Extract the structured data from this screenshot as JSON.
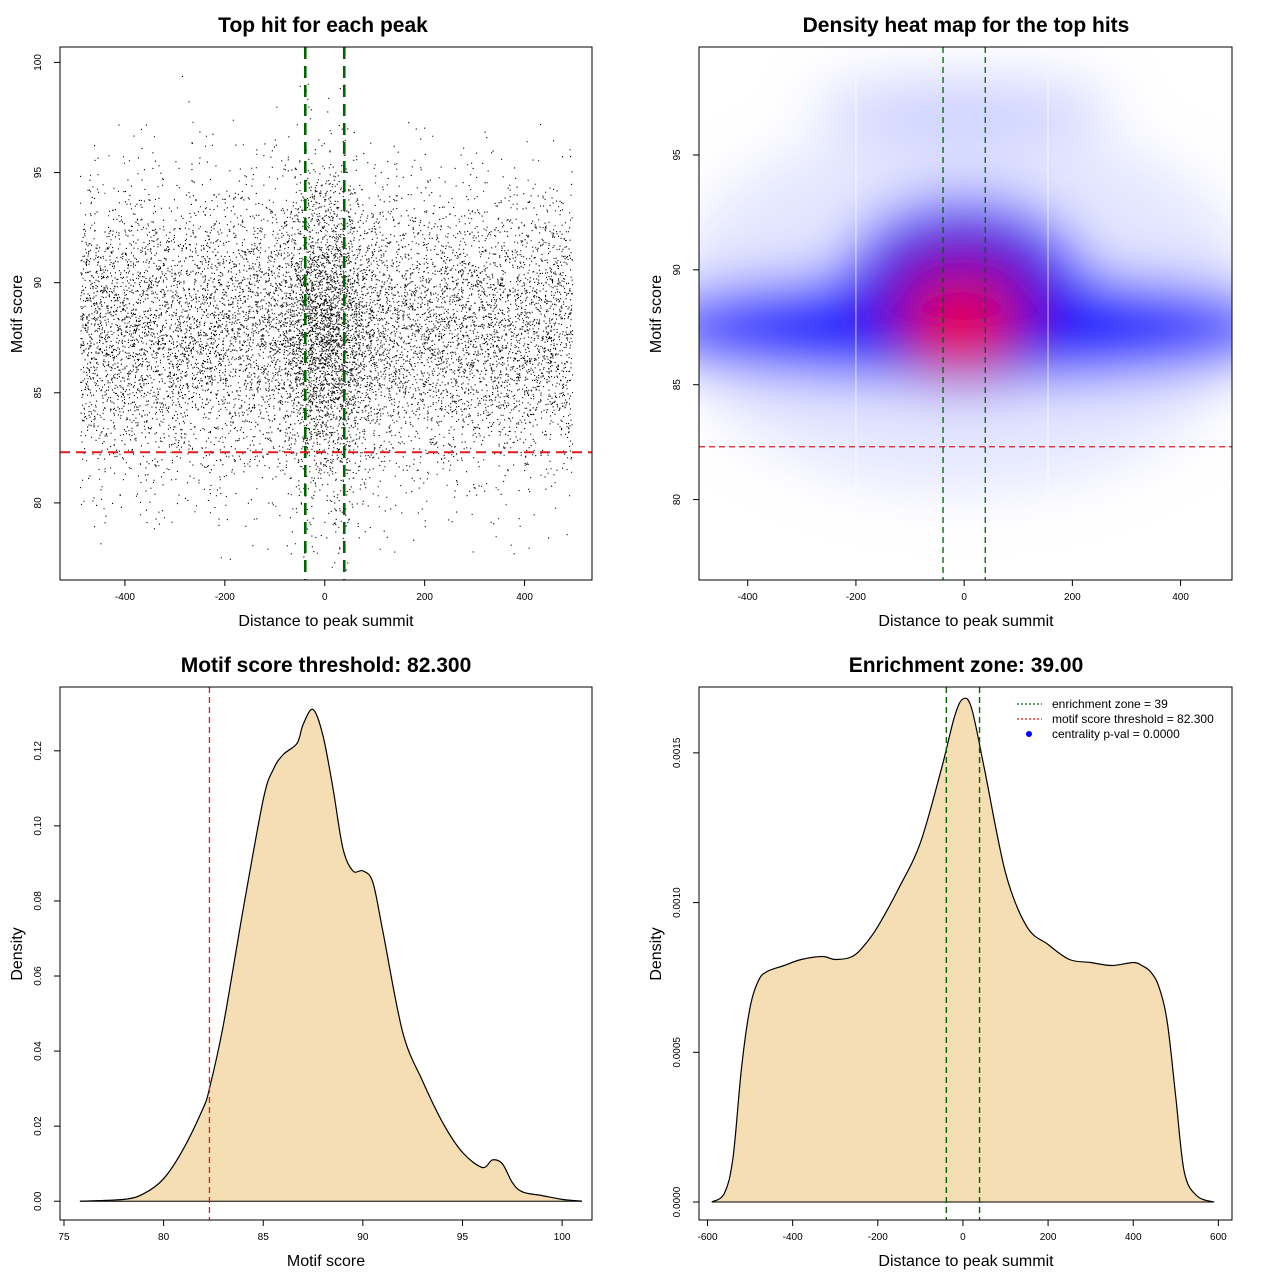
{
  "colors": {
    "green": "#006400",
    "red": "#e41a1c",
    "fill": "#f5deb3",
    "points": "#000000",
    "heat_low": "#ffffff",
    "heat_mid": "#0000ff",
    "heat_high": "#ff0000"
  },
  "chart_data": [
    {
      "type": "scatter",
      "title": "Top hit for each peak",
      "xlabel": "Distance to peak summit",
      "ylabel": "Motif score",
      "xlim": [
        -530,
        535
      ],
      "ylim": [
        76.5,
        100.7
      ],
      "xticks": [
        -400,
        -200,
        0,
        200,
        400
      ],
      "yticks": [
        80,
        85,
        90,
        95,
        100
      ],
      "x_range_points": [
        -490,
        495
      ],
      "score_mean": 87.8,
      "score_sd": 3.2,
      "score_range": [
        76.9,
        99.7
      ],
      "point_count_approx": 12000,
      "vlines": [
        -39,
        39
      ],
      "hline": 82.3
    },
    {
      "type": "heatmap",
      "title": "Density heat map for the top hits",
      "xlabel": "Distance to peak summit",
      "ylabel": "Motif score",
      "xlim": [
        -490,
        495
      ],
      "ylim": [
        76.5,
        99.7
      ],
      "xticks": [
        -400,
        -200,
        0,
        200,
        400
      ],
      "yticks": [
        80,
        85,
        90,
        95
      ],
      "density_peak": [
        -5,
        87.5
      ],
      "vlines": [
        -39,
        39
      ],
      "hline": 82.3
    },
    {
      "type": "area",
      "title": "Motif score threshold: 82.300",
      "xlabel": "Motif score",
      "ylabel": "Density",
      "xlim": [
        74.8,
        101.5
      ],
      "ylim": [
        -0.005,
        0.137
      ],
      "xticks": [
        75,
        80,
        85,
        90,
        95,
        100
      ],
      "yticks": [
        0.0,
        0.02,
        0.04,
        0.06,
        0.08,
        0.1,
        0.12
      ],
      "ytick_labels": [
        "0.00",
        "0.02",
        "0.04",
        "0.06",
        "0.08",
        "0.10",
        "0.12"
      ],
      "x": [
        75.8,
        78,
        79,
        80,
        81,
        82,
        82.3,
        83,
        84,
        85,
        85.5,
        86,
        86.7,
        87,
        87.5,
        88,
        88.5,
        89,
        89.5,
        90,
        90.5,
        91,
        92,
        93,
        94,
        95,
        96,
        96.5,
        97,
        97.5,
        98,
        99,
        100,
        101
      ],
      "y": [
        0.0,
        0.0005,
        0.002,
        0.006,
        0.014,
        0.025,
        0.03,
        0.047,
        0.078,
        0.107,
        0.115,
        0.119,
        0.122,
        0.127,
        0.131,
        0.124,
        0.11,
        0.094,
        0.088,
        0.088,
        0.085,
        0.072,
        0.045,
        0.032,
        0.021,
        0.013,
        0.009,
        0.011,
        0.01,
        0.005,
        0.0025,
        0.0015,
        0.0005,
        0.0
      ],
      "vline": 82.3
    },
    {
      "type": "area",
      "title": "Enrichment zone: 39.00",
      "xlabel": "Distance to peak summit",
      "ylabel": "Density",
      "xlim": [
        -620,
        632
      ],
      "ylim": [
        -6e-05,
        0.00172
      ],
      "xticks": [
        -600,
        -400,
        -200,
        0,
        200,
        400,
        600
      ],
      "yticks": [
        0.0,
        0.0005,
        0.001,
        0.0015
      ],
      "ytick_labels": [
        "0.0000",
        "0.0005",
        "0.0010",
        "0.0015"
      ],
      "x": [
        -590,
        -560,
        -540,
        -520,
        -500,
        -480,
        -460,
        -420,
        -380,
        -330,
        -300,
        -260,
        -230,
        -200,
        -150,
        -100,
        -50,
        -20,
        0,
        20,
        50,
        100,
        150,
        200,
        250,
        300,
        350,
        400,
        420,
        440,
        460,
        480,
        500,
        520,
        550,
        590
      ],
      "y": [
        0.0,
        3e-05,
        0.00015,
        0.00045,
        0.00065,
        0.00074,
        0.00077,
        0.00079,
        0.00081,
        0.00082,
        0.00081,
        0.00082,
        0.00086,
        0.00092,
        0.00105,
        0.0012,
        0.00145,
        0.00162,
        0.00168,
        0.00165,
        0.00145,
        0.0011,
        0.00092,
        0.00086,
        0.00081,
        0.0008,
        0.00079,
        0.0008,
        0.00079,
        0.00077,
        0.00072,
        0.0006,
        0.00035,
        0.0001,
        2e-05,
        0.0
      ],
      "vlines": [
        -39,
        39
      ],
      "legend_position": "top-right",
      "legend": [
        {
          "label": "enrichment zone = 39",
          "style": "dotted",
          "color": "#006400"
        },
        {
          "label": "motif score threshold = 82.300",
          "style": "dotted",
          "color": "#e41a1c"
        },
        {
          "label": "centrality p-val = 0.0000",
          "style": "point",
          "color": "#0000ff"
        }
      ]
    }
  ]
}
